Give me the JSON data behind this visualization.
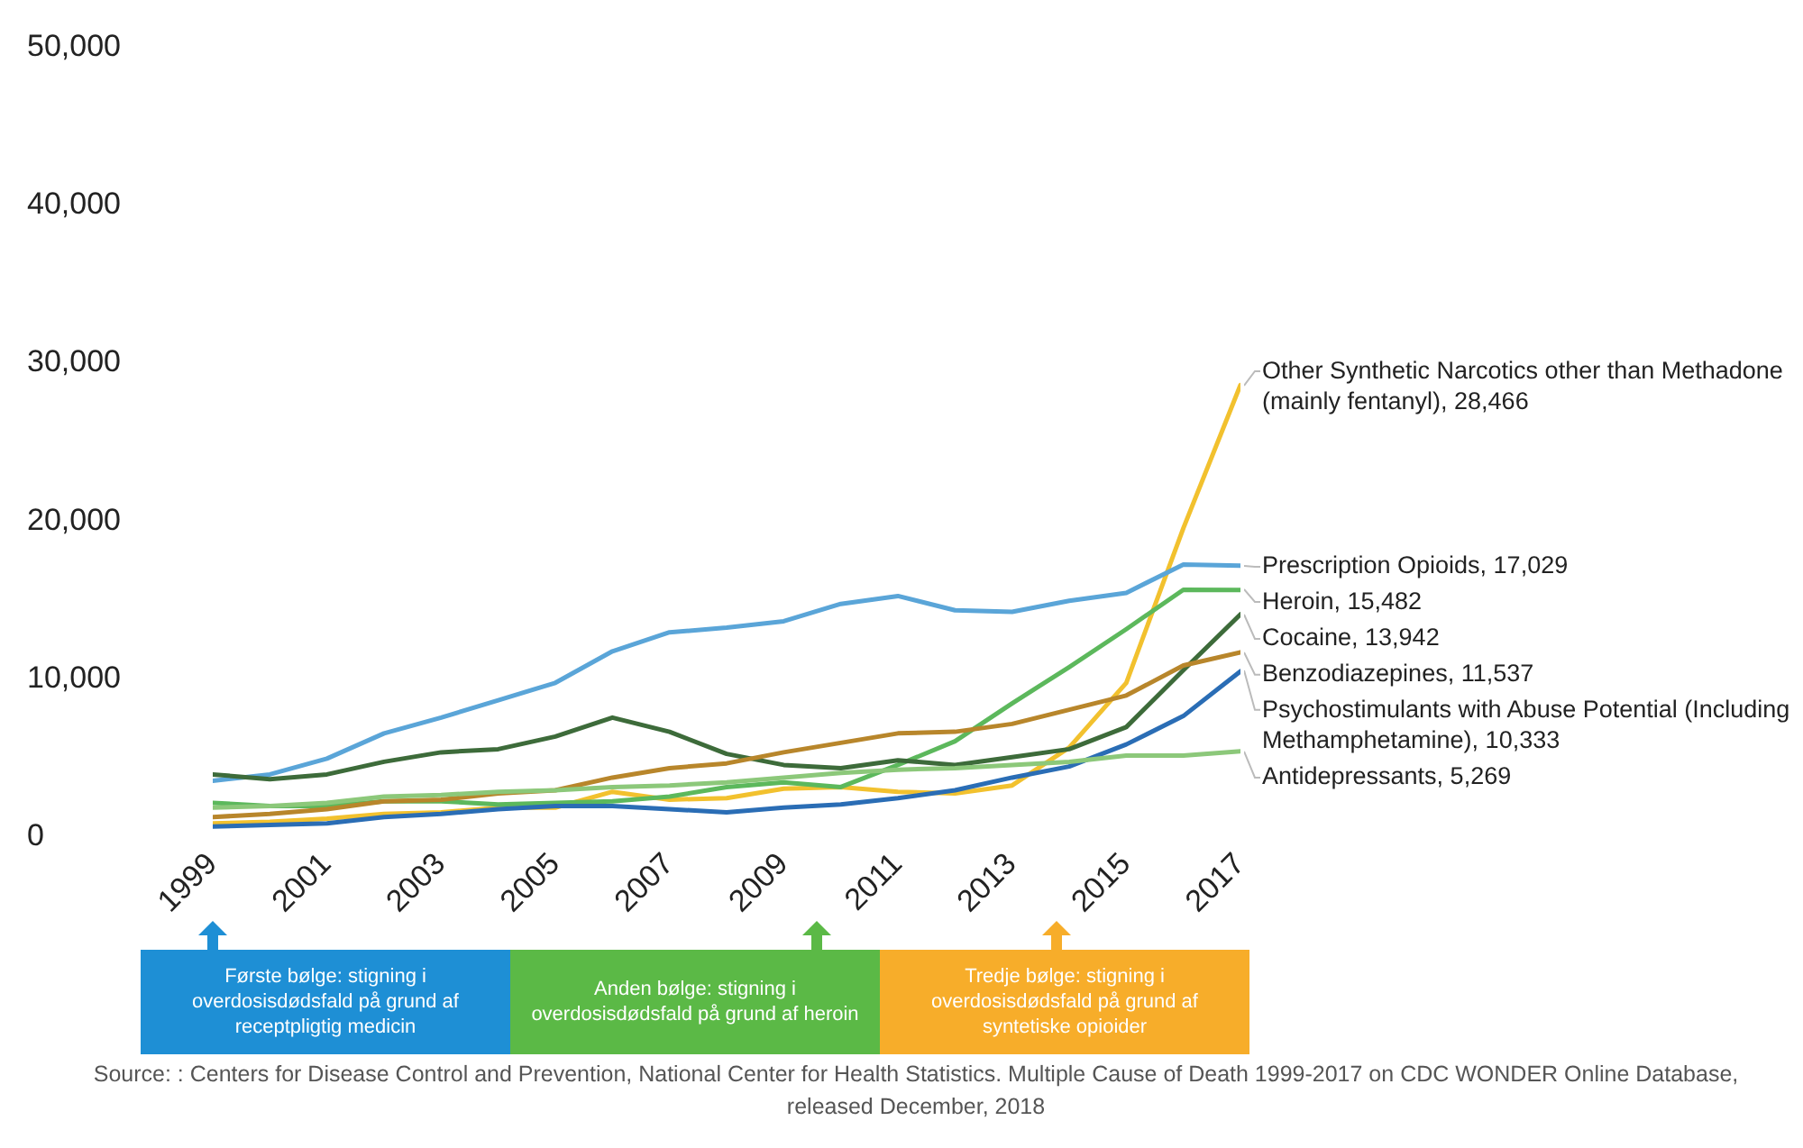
{
  "chart_data": {
    "type": "line",
    "x": [
      1999,
      2000,
      2001,
      2002,
      2003,
      2004,
      2005,
      2006,
      2007,
      2008,
      2009,
      2010,
      2011,
      2012,
      2013,
      2014,
      2015,
      2016,
      2017
    ],
    "xlim": [
      1999,
      2017
    ],
    "xticks": [
      1999,
      2001,
      2003,
      2005,
      2007,
      2009,
      2011,
      2013,
      2015,
      2017
    ],
    "ylim": [
      0,
      50000
    ],
    "yticks": [
      0,
      {
        "value": 10000,
        "label": "10,000"
      },
      {
        "value": 20000,
        "label": "20,000"
      },
      {
        "value": 30000,
        "label": "30,000"
      },
      {
        "value": 40000,
        "label": "40,000"
      },
      {
        "value": 50000,
        "label": "50,000"
      }
    ],
    "marker": "none",
    "series": [
      {
        "name": "Other Synthetic Narcotics other than Methadone (mainly fentanyl),",
        "color": "#f2c12e",
        "values": [
          700,
          800,
          1000,
          1300,
          1400,
          1700,
          1700,
          2700,
          2200,
          2300,
          2900,
          3000,
          2700,
          2600,
          3100,
          5500,
          9600,
          19400,
          28466
        ],
        "value_labels": [
          null,
          null,
          null,
          null,
          null,
          null,
          null,
          null,
          null,
          null,
          null,
          null,
          null,
          null,
          null,
          null,
          null,
          null,
          "28,466"
        ]
      },
      {
        "name": "Prescription Opioids,",
        "color": "#5aa5d8",
        "values": [
          3400,
          3800,
          4800,
          6400,
          7400,
          8500,
          9600,
          11600,
          12800,
          13100,
          13500,
          14600,
          15100,
          14200,
          14100,
          14800,
          15300,
          17100,
          17029
        ],
        "value_labels": [
          null,
          null,
          null,
          null,
          null,
          null,
          null,
          null,
          null,
          null,
          null,
          null,
          null,
          null,
          null,
          null,
          null,
          null,
          "17,029"
        ]
      },
      {
        "name": "Heroin,",
        "color": "#5cb85c",
        "values": [
          2000,
          1800,
          1800,
          2100,
          2100,
          1900,
          2000,
          2100,
          2400,
          3000,
          3300,
          3000,
          4400,
          5900,
          8300,
          10600,
          13000,
          15500,
          15482
        ],
        "value_labels": [
          null,
          null,
          null,
          null,
          null,
          null,
          null,
          null,
          null,
          null,
          null,
          null,
          null,
          null,
          null,
          null,
          null,
          null,
          "15,482"
        ]
      },
      {
        "name": "Cocaine,",
        "color": "#3d6b3a",
        "values": [
          3800,
          3500,
          3800,
          4600,
          5200,
          5400,
          6200,
          7400,
          6500,
          5100,
          4400,
          4200,
          4700,
          4400,
          4900,
          5400,
          6800,
          10400,
          13942
        ],
        "value_labels": [
          null,
          null,
          null,
          null,
          null,
          null,
          null,
          null,
          null,
          null,
          null,
          null,
          null,
          null,
          null,
          null,
          null,
          null,
          "13,942"
        ]
      },
      {
        "name": "Benzodiazepines,",
        "color": "#b8862b",
        "values": [
          1100,
          1300,
          1600,
          2100,
          2200,
          2600,
          2800,
          3600,
          4200,
          4500,
          5200,
          5800,
          6400,
          6500,
          7000,
          7900,
          8800,
          10700,
          11537
        ],
        "value_labels": [
          null,
          null,
          null,
          null,
          null,
          null,
          null,
          null,
          null,
          null,
          null,
          null,
          null,
          null,
          null,
          null,
          null,
          null,
          "11,537"
        ]
      },
      {
        "name": "Psychostimulants with Abuse Potential (Including Methamphetamine),",
        "color": "#2a6db5",
        "values": [
          500,
          600,
          700,
          1100,
          1300,
          1600,
          1800,
          1800,
          1600,
          1400,
          1700,
          1900,
          2300,
          2800,
          3600,
          4300,
          5700,
          7500,
          10333
        ],
        "value_labels": [
          null,
          null,
          null,
          null,
          null,
          null,
          null,
          null,
          null,
          null,
          null,
          null,
          null,
          null,
          null,
          null,
          null,
          null,
          "10,333"
        ]
      },
      {
        "name": "Antidepressants,",
        "color": "#8cc87a",
        "values": [
          1700,
          1800,
          2000,
          2400,
          2500,
          2700,
          2800,
          3000,
          3100,
          3300,
          3600,
          3900,
          4100,
          4200,
          4400,
          4600,
          5000,
          5000,
          5269
        ],
        "value_labels": [
          null,
          null,
          null,
          null,
          null,
          null,
          null,
          null,
          null,
          null,
          null,
          null,
          null,
          null,
          null,
          null,
          null,
          null,
          "5,269"
        ]
      }
    ],
    "annotations": [
      "Første bølge: stigning i overdosisdødsfald på grund af receptpligtig medicin",
      "Anden bølge: stigning i overdosisdødsfald på grund af heroin",
      "Tredje bølge: stigning i overdosisdødsfald på grund af syntetiske opioider",
      "Source: : Centers for Disease Control and Prevention, National Center for Health Statistics. Multiple Cause of Death 1999-2017 on CDC WONDER Online Database, released December, 2018"
    ]
  }
}
